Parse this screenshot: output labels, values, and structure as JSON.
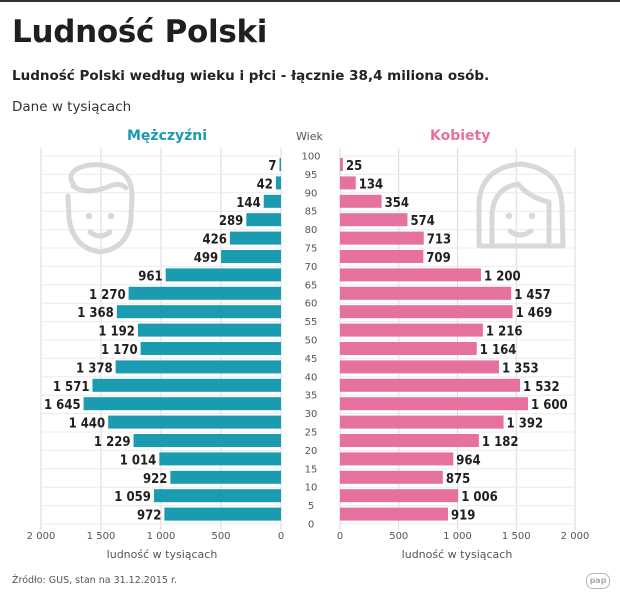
{
  "header": {
    "title": "Ludność Polski",
    "subtitle": "Ludność Polski według wieku i płci - łącznie 38,4 miliona osób.",
    "unit_note": "Dane w tysiącach"
  },
  "footer": {
    "source": "Źródło: GUS, stan na 31.12.2015 r.",
    "logo_text": "pap"
  },
  "icons": [
    "male-face-icon",
    "female-face-icon"
  ],
  "colors": {
    "male": "#1a9bb0",
    "female": "#e6719e",
    "grid": "#d9d9d9",
    "icon": "#d8d8d8"
  },
  "chart_data": {
    "type": "bar",
    "orientation": "horizontal-population-pyramid",
    "title": "Ludność Polski",
    "subtitle": "Ludność Polski według wieku i płci - łącznie 38,4 miliona osób.",
    "unit": "Dane w tysiącach",
    "categories_label": "Wiek",
    "categories": [
      100,
      95,
      90,
      85,
      80,
      75,
      70,
      65,
      60,
      55,
      50,
      45,
      40,
      35,
      30,
      25,
      20,
      15,
      10,
      5,
      0
    ],
    "category_labels": [
      "100",
      "95",
      "90",
      "85",
      "80",
      "75",
      "70",
      "65",
      "60",
      "55",
      "50",
      "45",
      "40",
      "35",
      "30",
      "25",
      "20",
      "15",
      "10",
      "5",
      "0"
    ],
    "series": [
      {
        "name": "Mężczyźni",
        "side": "left",
        "values": [
          7,
          42,
          144,
          289,
          426,
          499,
          961,
          1270,
          1368,
          1192,
          1170,
          1378,
          1571,
          1645,
          1440,
          1229,
          1014,
          922,
          1059,
          972,
          null
        ],
        "labels": [
          "7",
          "42",
          "144",
          "289",
          "426",
          "499",
          "961",
          "1 270",
          "1 368",
          "1 192",
          "1 170",
          "1 378",
          "1 571",
          "1 645",
          "1 440",
          "1 229",
          "1 014",
          "922",
          "1 059",
          "972",
          ""
        ]
      },
      {
        "name": "Kobiety",
        "side": "right",
        "values": [
          25,
          134,
          354,
          574,
          713,
          709,
          1200,
          1457,
          1469,
          1216,
          1164,
          1353,
          1532,
          1600,
          1392,
          1182,
          964,
          875,
          1006,
          919,
          null
        ],
        "labels": [
          "25",
          "134",
          "354",
          "574",
          "713",
          "709",
          "1 200",
          "1 457",
          "1 469",
          "1 216",
          "1 164",
          "1 353",
          "1 532",
          "1 600",
          "1 392",
          "1 182",
          "964",
          "875",
          "1 006",
          "919",
          ""
        ]
      }
    ],
    "xlim": [
      0,
      2000
    ],
    "xticks": [
      0,
      500,
      1000,
      1500,
      2000
    ],
    "xtick_labels_left": [
      "0",
      "500",
      "1 000",
      "1 500",
      "2 000"
    ],
    "xtick_labels_right": [
      "0",
      "500",
      "1 000",
      "1 500",
      "2 000"
    ],
    "xlabel": "ludność w tysiącach",
    "grid": true
  }
}
